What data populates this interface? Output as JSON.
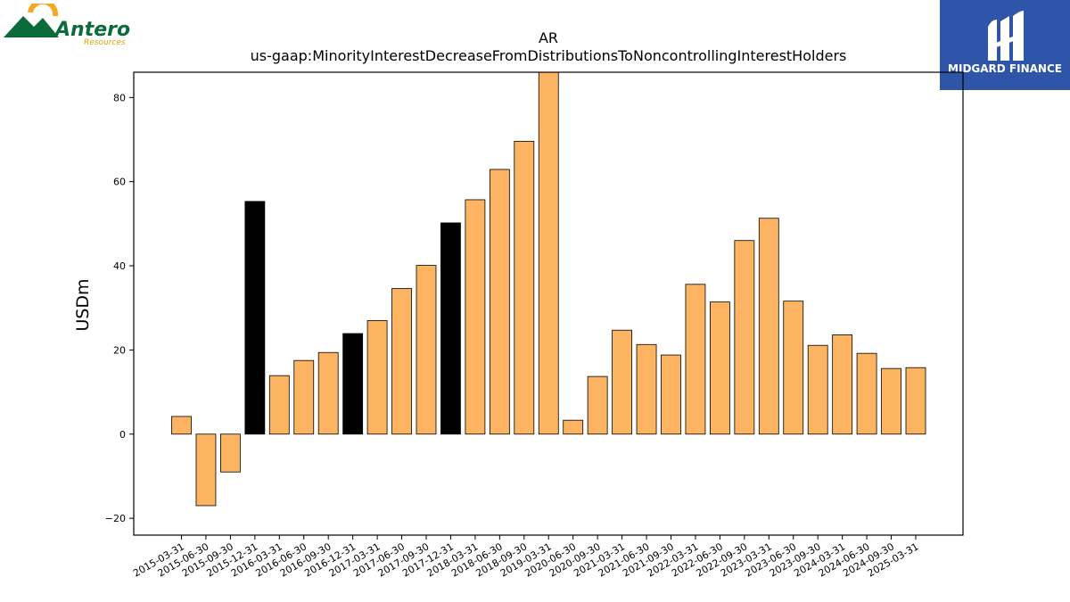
{
  "brand_left": {
    "name": "Antero",
    "tagline": "Resources",
    "green": "#0b6b3a",
    "orange": "#f5a623"
  },
  "brand_right": {
    "name": "MIDGARD FINANCE",
    "bg": "#2e55a8"
  },
  "chart_data": {
    "type": "bar",
    "title": "AR",
    "subtitle": "us-gaap:MinorityInterestDecreaseFromDistributionsToNoncontrollingInterestHolders",
    "xlabel": "",
    "ylabel": "USDm",
    "ylim": [
      -24,
      86
    ],
    "yticks": [
      -20,
      0,
      20,
      40,
      60,
      80
    ],
    "grid": false,
    "colors": {
      "default": "#fdb462",
      "highlight": "#000000",
      "edge": "#000000"
    },
    "categories": [
      "2015-03-31",
      "2015-06-30",
      "2015-09-30",
      "2015-12-31",
      "2016-03-31",
      "2016-06-30",
      "2016-09-30",
      "2016-12-31",
      "2017-03-31",
      "2017-06-30",
      "2017-09-30",
      "2017-12-31",
      "2018-03-31",
      "2018-06-30",
      "2018-09-30",
      "2019-03-31",
      "2020-06-30",
      "2020-09-30",
      "2021-03-31",
      "2021-06-30",
      "2021-09-30",
      "2022-03-31",
      "2022-06-30",
      "2022-09-30",
      "2023-03-31",
      "2023-06-30",
      "2023-09-30",
      "2024-03-31",
      "2024-06-30",
      "2024-09-30",
      "2025-03-31"
    ],
    "values": [
      4.2,
      -17.0,
      -9.0,
      55.3,
      13.9,
      17.5,
      19.4,
      23.9,
      27.0,
      34.6,
      40.1,
      50.2,
      55.7,
      62.9,
      69.6,
      86.0,
      3.3,
      13.7,
      24.7,
      21.3,
      18.8,
      35.6,
      31.4,
      46.0,
      51.3,
      31.6,
      21.1,
      23.6,
      19.2,
      15.6,
      15.8
    ],
    "highlight": [
      false,
      false,
      false,
      true,
      false,
      false,
      false,
      true,
      false,
      false,
      false,
      true,
      false,
      false,
      false,
      false,
      false,
      false,
      false,
      false,
      false,
      false,
      false,
      false,
      false,
      false,
      false,
      false,
      false,
      false,
      false
    ]
  }
}
